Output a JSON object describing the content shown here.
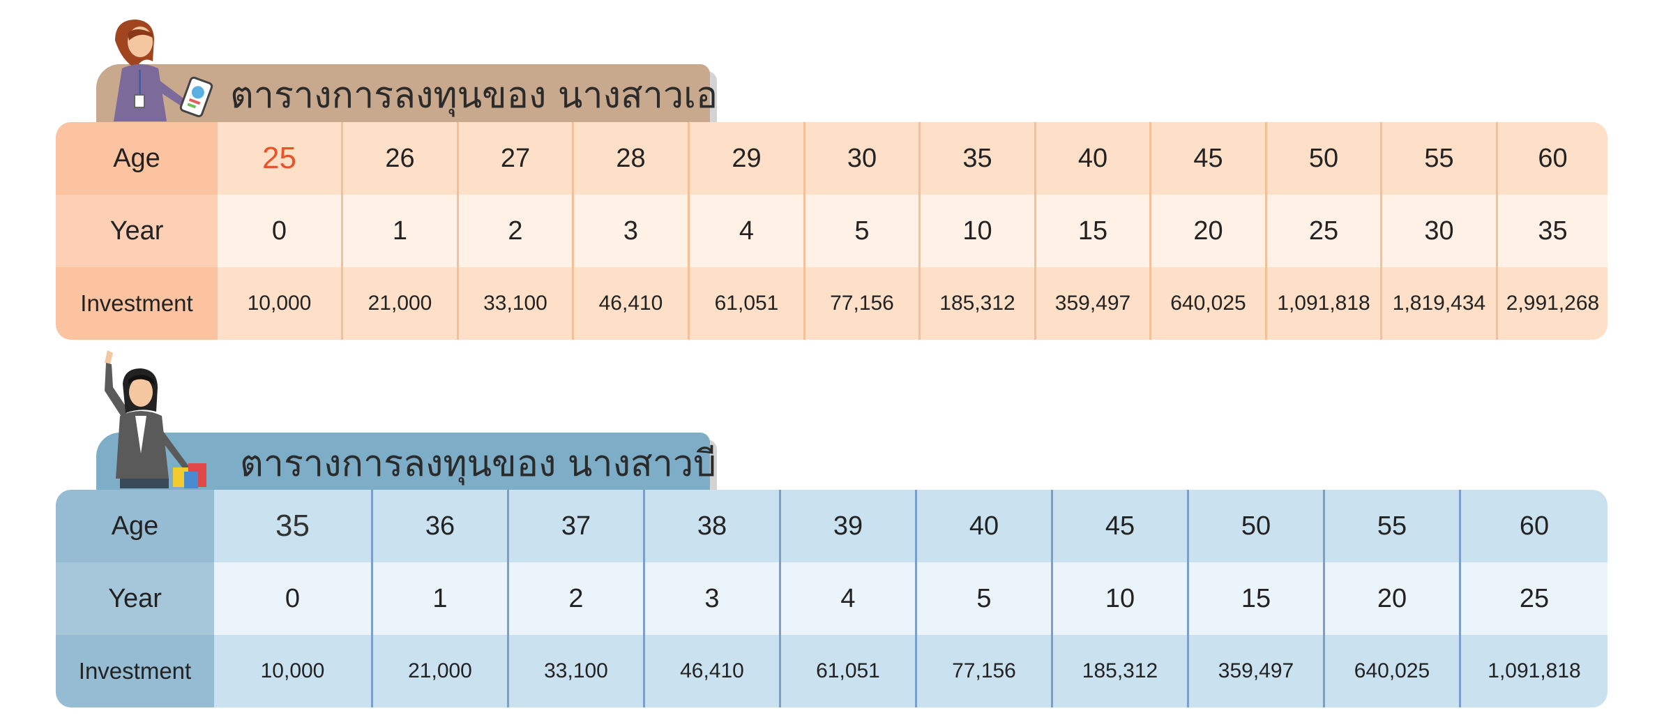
{
  "tables": [
    {
      "title": "ตารางการลงทุนของ นางสาวเอ",
      "row_labels": [
        "Age",
        "Year",
        "Investment"
      ],
      "age": [
        "25",
        "26",
        "27",
        "28",
        "29",
        "30",
        "35",
        "40",
        "45",
        "50",
        "55",
        "60"
      ],
      "year": [
        "0",
        "1",
        "2",
        "3",
        "4",
        "5",
        "10",
        "15",
        "20",
        "25",
        "30",
        "35"
      ],
      "investment": [
        "10,000",
        "21,000",
        "33,100",
        "46,410",
        "61,051",
        "77,156",
        "185,312",
        "359,497",
        "640,025",
        "1,091,818",
        "1,819,434",
        "2,991,268"
      ],
      "highlight_color": "#e8532a",
      "theme": "peach"
    },
    {
      "title": "ตารางการลงทุนของ นางสาวบี",
      "row_labels": [
        "Age",
        "Year",
        "Investment"
      ],
      "age": [
        "35",
        "36",
        "37",
        "38",
        "39",
        "40",
        "45",
        "50",
        "55",
        "60"
      ],
      "year": [
        "0",
        "1",
        "2",
        "3",
        "4",
        "5",
        "10",
        "15",
        "20",
        "25"
      ],
      "investment": [
        "10,000",
        "21,000",
        "33,100",
        "46,410",
        "61,051",
        "77,156",
        "185,312",
        "359,497",
        "640,025",
        "1,091,818"
      ],
      "theme": "blue"
    }
  ],
  "illustrations": [
    "woman-with-tablet-icon",
    "woman-waving-shopping-icon"
  ]
}
